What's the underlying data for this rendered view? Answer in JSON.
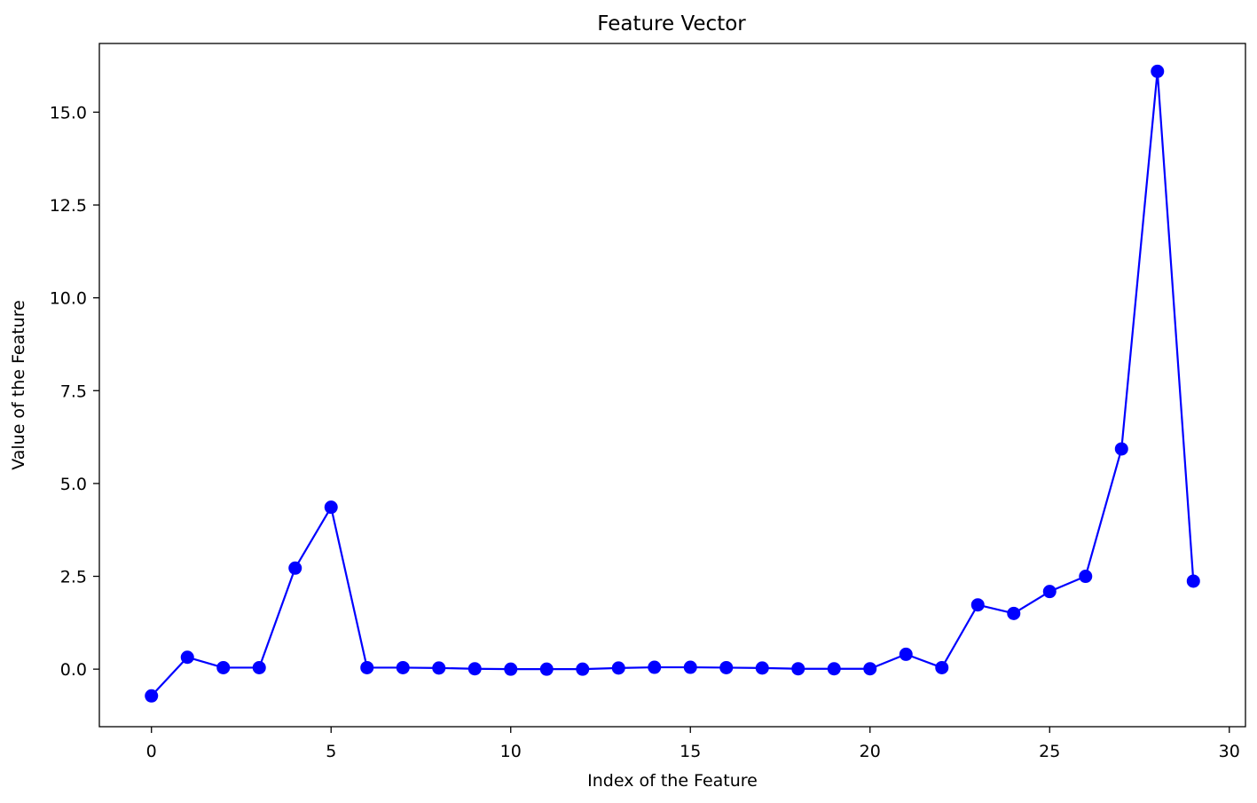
{
  "chart_data": {
    "type": "line",
    "title": "Feature Vector",
    "xlabel": "Index of the Feature",
    "ylabel": "Value of the Feature",
    "xlim": [
      -1.45,
      30.45
    ],
    "ylim": [
      -1.55,
      16.85
    ],
    "xticks": [
      0,
      5,
      10,
      15,
      20,
      25,
      30
    ],
    "yticks": [
      0.0,
      2.5,
      5.0,
      7.5,
      10.0,
      12.5,
      15.0
    ],
    "xtick_labels": [
      "0",
      "5",
      "10",
      "15",
      "20",
      "25",
      "30"
    ],
    "ytick_labels": [
      "0.0",
      "2.5",
      "5.0",
      "7.5",
      "10.0",
      "12.5",
      "15.0"
    ],
    "grid": false,
    "series": [
      {
        "color": "#0000ff",
        "marker": "circle",
        "x": [
          0,
          1,
          2,
          3,
          4,
          5,
          6,
          7,
          8,
          9,
          10,
          11,
          12,
          13,
          14,
          15,
          16,
          17,
          18,
          19,
          20,
          21,
          22,
          23,
          24,
          25,
          26,
          27,
          28,
          29
        ],
        "values": [
          -0.72,
          0.32,
          0.04,
          0.04,
          2.72,
          4.36,
          0.04,
          0.04,
          0.03,
          0.01,
          0.0,
          0.0,
          0.0,
          0.03,
          0.05,
          0.05,
          0.04,
          0.03,
          0.01,
          0.01,
          0.01,
          0.4,
          0.04,
          1.73,
          1.5,
          2.09,
          2.5,
          5.93,
          16.1,
          2.37
        ]
      }
    ]
  }
}
